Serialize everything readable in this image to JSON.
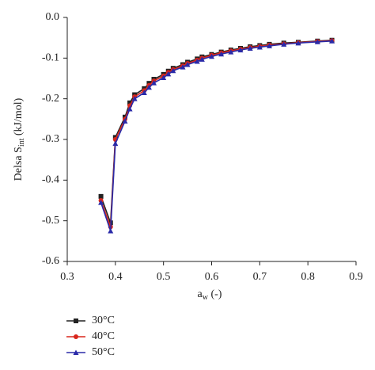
{
  "chart_data": {
    "type": "line",
    "xlabel": {
      "main": "a",
      "sub": "w",
      "rest": " (-)"
    },
    "ylabel": {
      "main": "Delsa S",
      "sub": "int",
      "rest": " (kJ/mol)"
    },
    "x": [
      0.37,
      0.39,
      0.4,
      0.42,
      0.43,
      0.44,
      0.46,
      0.47,
      0.48,
      0.5,
      0.51,
      0.52,
      0.54,
      0.55,
      0.57,
      0.58,
      0.6,
      0.62,
      0.64,
      0.66,
      0.68,
      0.7,
      0.72,
      0.75,
      0.78,
      0.82,
      0.85
    ],
    "series": [
      {
        "name": "30°C",
        "color": "#222222",
        "marker": "square",
        "values": [
          -0.44,
          -0.505,
          -0.295,
          -0.245,
          -0.21,
          -0.19,
          -0.175,
          -0.162,
          -0.152,
          -0.14,
          -0.132,
          -0.125,
          -0.116,
          -0.11,
          -0.102,
          -0.097,
          -0.091,
          -0.085,
          -0.08,
          -0.076,
          -0.072,
          -0.069,
          -0.066,
          -0.063,
          -0.061,
          -0.058,
          -0.056
        ]
      },
      {
        "name": "40°C",
        "color": "#d8261c",
        "marker": "circle",
        "values": [
          -0.45,
          -0.515,
          -0.3,
          -0.25,
          -0.217,
          -0.195,
          -0.18,
          -0.167,
          -0.156,
          -0.144,
          -0.135,
          -0.128,
          -0.119,
          -0.113,
          -0.105,
          -0.1,
          -0.093,
          -0.087,
          -0.082,
          -0.078,
          -0.074,
          -0.071,
          -0.068,
          -0.065,
          -0.062,
          -0.059,
          -0.057
        ]
      },
      {
        "name": "50°C",
        "color": "#2a2aa8",
        "marker": "triangle",
        "values": [
          -0.455,
          -0.525,
          -0.31,
          -0.255,
          -0.225,
          -0.2,
          -0.185,
          -0.172,
          -0.161,
          -0.148,
          -0.139,
          -0.131,
          -0.122,
          -0.116,
          -0.108,
          -0.103,
          -0.096,
          -0.09,
          -0.085,
          -0.08,
          -0.076,
          -0.073,
          -0.07,
          -0.066,
          -0.063,
          -0.06,
          -0.058
        ]
      }
    ],
    "xlim": [
      0.3,
      0.9
    ],
    "xticks": [
      0.3,
      0.4,
      0.5,
      0.6,
      0.7,
      0.8,
      0.9
    ],
    "ylim": [
      -0.6,
      0
    ],
    "yticks": [
      {
        "value": 0,
        "label": "0.0"
      },
      -0.1,
      -0.2,
      -0.3,
      -0.4,
      -0.5,
      -0.6
    ],
    "grid": false
  }
}
